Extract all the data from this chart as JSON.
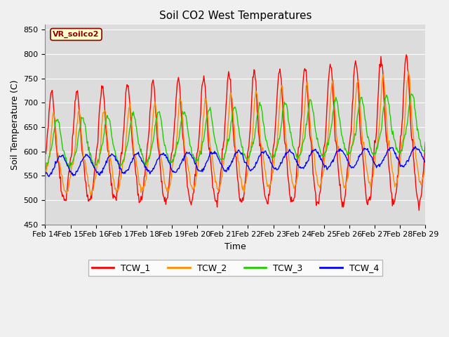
{
  "title": "Soil CO2 West Temperatures",
  "xlabel": "Time",
  "ylabel": "Soil Temperature (C)",
  "ylim": [
    450,
    860
  ],
  "yticks": [
    450,
    500,
    550,
    600,
    650,
    700,
    750,
    800,
    850
  ],
  "x_labels": [
    "Feb 14",
    "Feb 15",
    "Feb 16",
    "Feb 17",
    "Feb 18",
    "Feb 19",
    "Feb 20",
    "Feb 21",
    "Feb 22",
    "Feb 23",
    "Feb 24",
    "Feb 25",
    "Feb 26",
    "Feb 27",
    "Feb 28",
    "Feb 29"
  ],
  "legend_label": "VR_soilco2",
  "series_names": [
    "TCW_1",
    "TCW_2",
    "TCW_3",
    "TCW_4"
  ],
  "series_colors": [
    "#ff0000",
    "#ff8c00",
    "#22cc00",
    "#0000ff"
  ],
  "plot_bg_color": "#dcdcdc",
  "fig_bg_color": "#f0f0f0",
  "title_fontsize": 11,
  "axis_label_fontsize": 9,
  "tick_label_fontsize": 8,
  "n_days": 15,
  "n_pts": 600
}
